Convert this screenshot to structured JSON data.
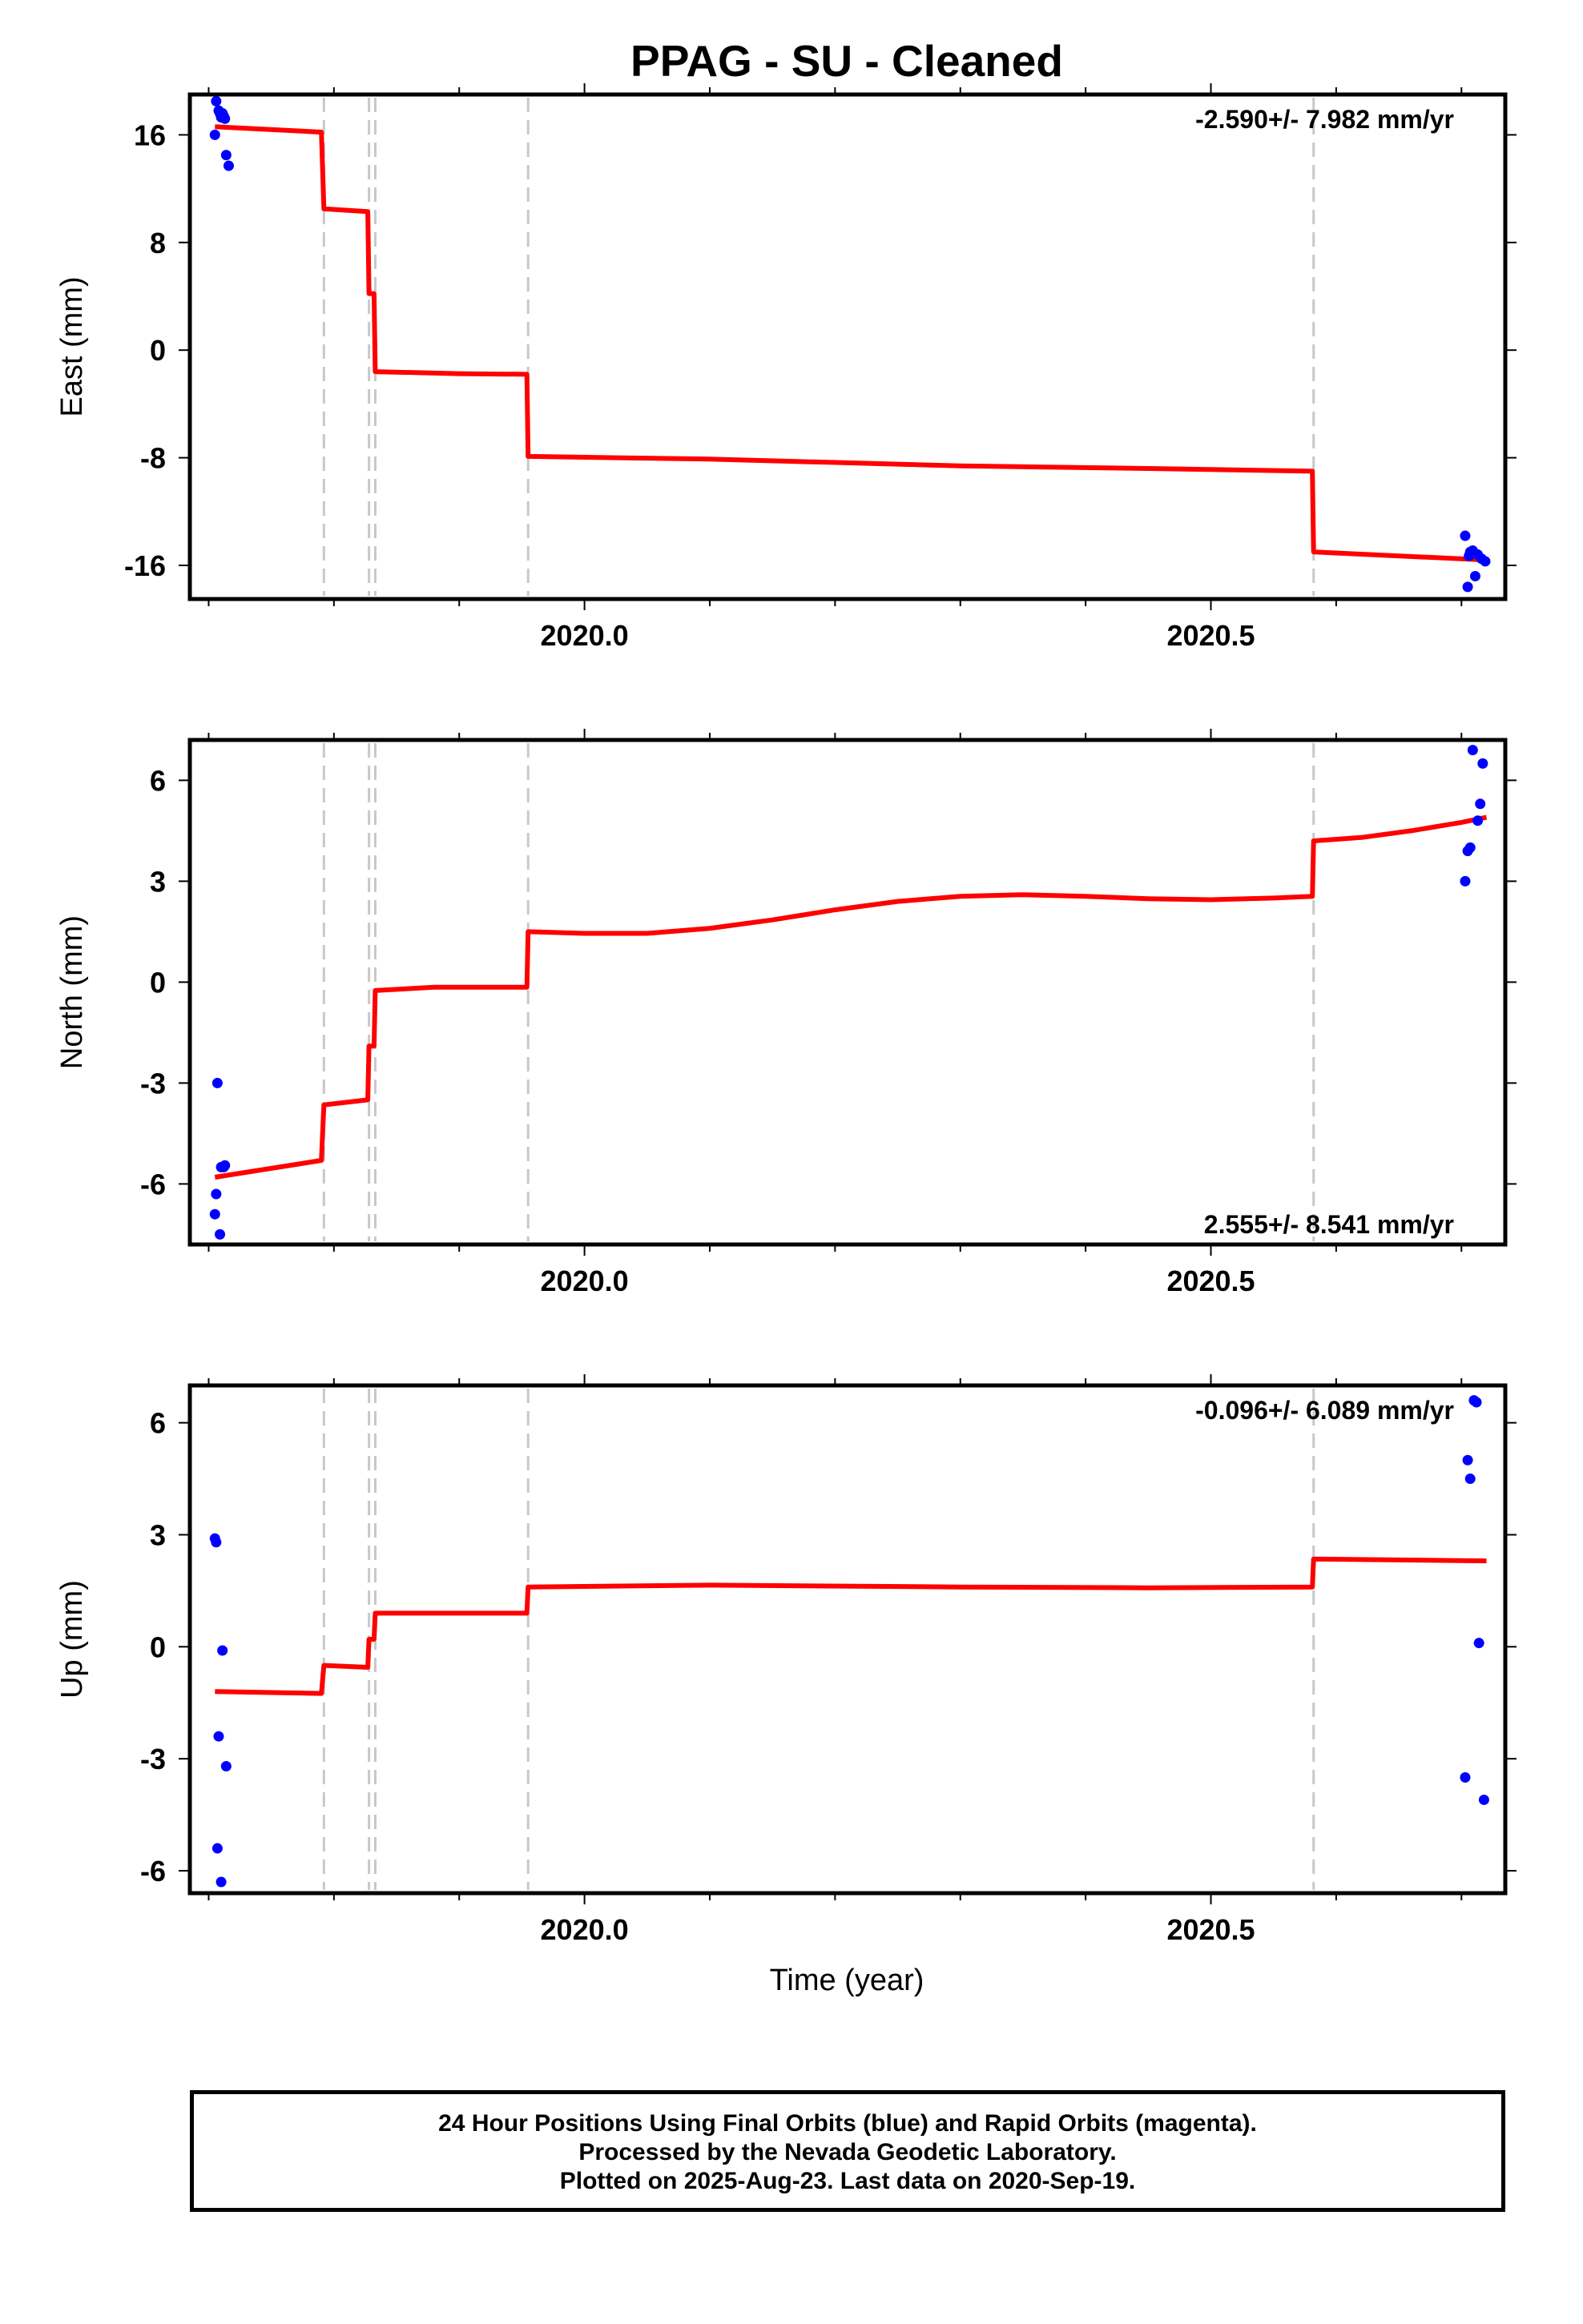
{
  "title": "PPAG  - SU - Cleaned",
  "xlabel": "Time (year)",
  "colors": {
    "model": "#ff0000",
    "final_orbits": "#0000ff",
    "break": "#c8c8c8",
    "frame": "#000000"
  },
  "caption": [
    "24 Hour Positions Using Final Orbits (blue) and Rapid Orbits (magenta).",
    "Processed by the Nevada Geodetic Laboratory.",
    "Plotted on 2025-Aug-23. Last data on 2020-Sep-19."
  ],
  "chart_data": [
    {
      "type": "scatter",
      "name": "east",
      "ylabel": "East (mm)",
      "rate_label": "-2.590+/- 7.982 mm/yr",
      "rate_position": "top-right",
      "xlim": [
        2019.685,
        2020.735
      ],
      "ylim": [
        -18.5,
        19
      ],
      "xticks": [
        2020.0,
        2020.5
      ],
      "xtick_labels": [
        "2020.0",
        "2020.5"
      ],
      "yticks": [
        -16,
        -8,
        0,
        8,
        16
      ],
      "ytick_labels": [
        "-16",
        "-8",
        "0",
        "8",
        "16"
      ],
      "breaks": [
        2019.792,
        2019.828,
        2019.833,
        2019.955,
        2020.582
      ],
      "model": [
        [
          2019.705,
          16.6
        ],
        [
          2019.79,
          16.2
        ],
        [
          2019.792,
          10.5
        ],
        [
          2019.827,
          10.3
        ],
        [
          2019.828,
          4.2
        ],
        [
          2019.832,
          4.2
        ],
        [
          2019.833,
          -1.6
        ],
        [
          2019.9,
          -1.75
        ],
        [
          2019.954,
          -1.8
        ],
        [
          2019.955,
          -7.9
        ],
        [
          2020.1,
          -8.1
        ],
        [
          2020.3,
          -8.6
        ],
        [
          2020.45,
          -8.8
        ],
        [
          2020.581,
          -9.0
        ],
        [
          2020.582,
          -15.0
        ],
        [
          2020.72,
          -15.6
        ]
      ],
      "points": [
        [
          2019.705,
          16.0
        ],
        [
          2019.706,
          18.5
        ],
        [
          2019.708,
          17.8
        ],
        [
          2019.709,
          17.6
        ],
        [
          2019.71,
          17.3
        ],
        [
          2019.711,
          17.6
        ],
        [
          2019.712,
          17.4
        ],
        [
          2019.713,
          17.2
        ],
        [
          2019.714,
          14.5
        ],
        [
          2019.716,
          13.7
        ],
        [
          2020.703,
          -13.8
        ],
        [
          2020.705,
          -17.6
        ],
        [
          2020.706,
          -15.3
        ],
        [
          2020.707,
          -15.0
        ],
        [
          2020.709,
          -14.9
        ],
        [
          2020.711,
          -16.8
        ],
        [
          2020.713,
          -15.2
        ],
        [
          2020.716,
          -15.5
        ],
        [
          2020.719,
          -15.7
        ]
      ]
    },
    {
      "type": "scatter",
      "name": "north",
      "ylabel": "North (mm)",
      "rate_label": "2.555+/- 8.541 mm/yr",
      "rate_position": "bottom-right",
      "xlim": [
        2019.685,
        2020.735
      ],
      "ylim": [
        -7.8,
        7.2
      ],
      "xticks": [
        2020.0,
        2020.5
      ],
      "xtick_labels": [
        "2020.0",
        "2020.5"
      ],
      "yticks": [
        -6,
        -3,
        0,
        3,
        6
      ],
      "ytick_labels": [
        "-6",
        "-3",
        "0",
        "3",
        "6"
      ],
      "breaks": [
        2019.792,
        2019.828,
        2019.833,
        2019.955,
        2020.582
      ],
      "model": [
        [
          2019.705,
          -5.8
        ],
        [
          2019.79,
          -5.3
        ],
        [
          2019.792,
          -3.65
        ],
        [
          2019.827,
          -3.5
        ],
        [
          2019.828,
          -1.9
        ],
        [
          2019.832,
          -1.9
        ],
        [
          2019.833,
          -0.25
        ],
        [
          2019.88,
          -0.15
        ],
        [
          2019.954,
          -0.15
        ],
        [
          2019.955,
          1.5
        ],
        [
          2020.0,
          1.45
        ],
        [
          2020.05,
          1.45
        ],
        [
          2020.1,
          1.6
        ],
        [
          2020.15,
          1.85
        ],
        [
          2020.2,
          2.15
        ],
        [
          2020.25,
          2.4
        ],
        [
          2020.3,
          2.55
        ],
        [
          2020.35,
          2.6
        ],
        [
          2020.4,
          2.55
        ],
        [
          2020.45,
          2.48
        ],
        [
          2020.5,
          2.45
        ],
        [
          2020.55,
          2.5
        ],
        [
          2020.581,
          2.55
        ],
        [
          2020.582,
          4.2
        ],
        [
          2020.62,
          4.3
        ],
        [
          2020.66,
          4.5
        ],
        [
          2020.7,
          4.75
        ],
        [
          2020.72,
          4.9
        ]
      ],
      "points": [
        [
          2019.705,
          -6.9
        ],
        [
          2019.706,
          -6.3
        ],
        [
          2019.707,
          -3.0
        ],
        [
          2019.709,
          -7.5
        ],
        [
          2019.71,
          -5.5
        ],
        [
          2019.712,
          -5.5
        ],
        [
          2019.713,
          -5.45
        ],
        [
          2020.703,
          3.0
        ],
        [
          2020.705,
          3.9
        ],
        [
          2020.707,
          4.0
        ],
        [
          2020.709,
          6.9
        ],
        [
          2020.713,
          4.8
        ],
        [
          2020.715,
          5.3
        ],
        [
          2020.717,
          6.5
        ]
      ]
    },
    {
      "type": "scatter",
      "name": "up",
      "ylabel": "Up (mm)",
      "rate_label": "-0.096+/- 6.089 mm/yr",
      "rate_position": "top-right",
      "xlim": [
        2019.685,
        2020.735
      ],
      "ylim": [
        -6.6,
        7.0
      ],
      "xticks": [
        2020.0,
        2020.5
      ],
      "xtick_labels": [
        "2020.0",
        "2020.5"
      ],
      "yticks": [
        -6,
        -3,
        0,
        3,
        6
      ],
      "ytick_labels": [
        "-6",
        "-3",
        "0",
        "3",
        "6"
      ],
      "breaks": [
        2019.792,
        2019.828,
        2019.833,
        2019.955,
        2020.582
      ],
      "model": [
        [
          2019.705,
          -1.2
        ],
        [
          2019.79,
          -1.25
        ],
        [
          2019.792,
          -0.5
        ],
        [
          2019.827,
          -0.55
        ],
        [
          2019.828,
          0.2
        ],
        [
          2019.832,
          0.2
        ],
        [
          2019.833,
          0.9
        ],
        [
          2019.954,
          0.9
        ],
        [
          2019.955,
          1.6
        ],
        [
          2020.1,
          1.65
        ],
        [
          2020.3,
          1.6
        ],
        [
          2020.45,
          1.58
        ],
        [
          2020.581,
          1.6
        ],
        [
          2020.582,
          2.35
        ],
        [
          2020.72,
          2.3
        ]
      ],
      "points": [
        [
          2019.705,
          2.9
        ],
        [
          2019.706,
          2.8
        ],
        [
          2019.707,
          -5.4
        ],
        [
          2019.708,
          -2.4
        ],
        [
          2019.71,
          -6.3
        ],
        [
          2019.711,
          -0.1
        ],
        [
          2019.714,
          -3.2
        ],
        [
          2020.703,
          -3.5
        ],
        [
          2020.705,
          5.0
        ],
        [
          2020.707,
          4.5
        ],
        [
          2020.71,
          6.6
        ],
        [
          2020.712,
          6.55
        ],
        [
          2020.714,
          0.1
        ],
        [
          2020.718,
          -4.1
        ]
      ]
    }
  ]
}
